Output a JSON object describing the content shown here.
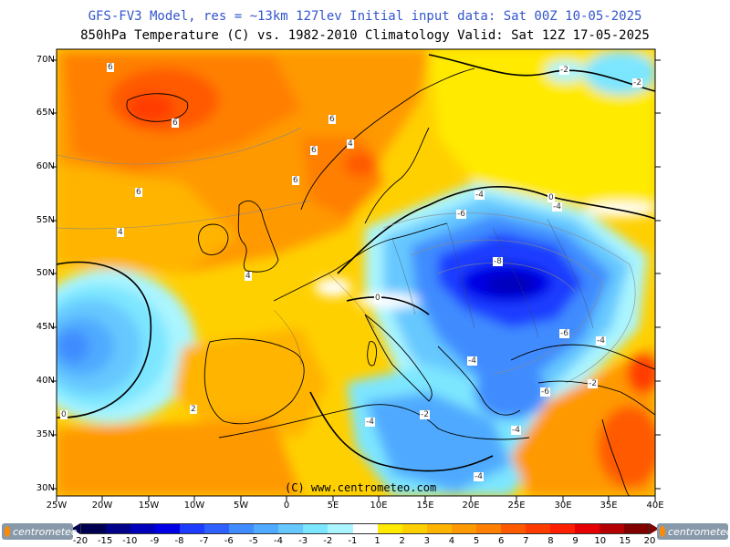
{
  "header": {
    "title_line1": "GFS-FV3 Model, res = ~13km 127lev   Initial input data: Sat 00Z 10-05-2025",
    "title_line2": "850hPa Temperature (C) vs. 1982-2010 Climatology  Valid: Sat 12Z 17-05-2025"
  },
  "map": {
    "lat_labels": [
      "70N",
      "65N",
      "60N",
      "55N",
      "50N",
      "45N",
      "40N",
      "35N",
      "30N"
    ],
    "lon_labels": [
      "25W",
      "20W",
      "15W",
      "10W",
      "5W",
      "0",
      "5E",
      "10E",
      "15E",
      "20E",
      "25E",
      "30E",
      "35E",
      "40E"
    ],
    "contour_labels": [
      "6",
      "6",
      "6",
      "6",
      "6",
      "6",
      "4",
      "4",
      "4",
      "2",
      "-2",
      "-4",
      "-6",
      "-8",
      "-6",
      "-4",
      "-4",
      "-6",
      "-2",
      "-4",
      "-4",
      "-2",
      "-4",
      "0",
      "0",
      "-2",
      "-4",
      "0"
    ],
    "copyright": "(C) www.centrometeo.com"
  },
  "legend": {
    "colors": [
      "#000050",
      "#000088",
      "#0000bb",
      "#0000e6",
      "#1e3cff",
      "#2e5fff",
      "#3f8cff",
      "#50aaff",
      "#66c8ff",
      "#7de6ff",
      "#aaf5ff",
      "#ffffff",
      "#ffea00",
      "#ffd000",
      "#ffb400",
      "#ff9900",
      "#ff7f00",
      "#ff5a00",
      "#ff3c00",
      "#ff1e00",
      "#e60000",
      "#b40000",
      "#800000"
    ],
    "labels": [
      "-20",
      "-15",
      "-10",
      "-9",
      "-8",
      "-7",
      "-6",
      "-5",
      "-4",
      "-3",
      "-2",
      "-1",
      "1",
      "2",
      "3",
      "4",
      "5",
      "6",
      "7",
      "8",
      "9",
      "10",
      "15",
      "20"
    ]
  },
  "branding": {
    "logo_left": "centrometeo",
    "logo_right": "centrometeo"
  }
}
